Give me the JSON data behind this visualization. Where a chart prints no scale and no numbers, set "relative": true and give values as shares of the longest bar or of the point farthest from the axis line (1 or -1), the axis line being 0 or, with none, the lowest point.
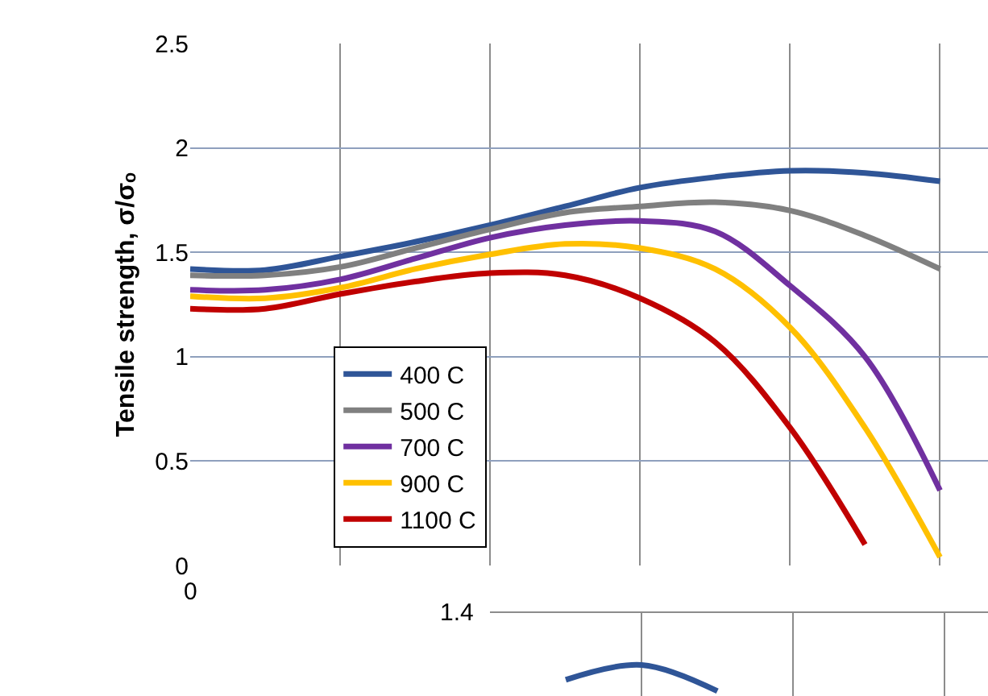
{
  "chart_data": [
    {
      "type": "line",
      "ylabel": "Tensile strength, σ/σₒ",
      "annotations": [
        "0"
      ],
      "categories": [
        null,
        null,
        null,
        null,
        null,
        null,
        null,
        null,
        null,
        null,
        null
      ],
      "ylim": [
        0,
        2.5
      ],
      "yticks": [
        0,
        0.5,
        1,
        1.5,
        2,
        2.5
      ],
      "grid": true,
      "legend": "bottom left",
      "marker": "none",
      "line_style": "solid",
      "series": [
        {
          "name": "400 C",
          "color": "#2f5597",
          "values": [
            1.42,
            1.415,
            1.48,
            1.55,
            1.63,
            1.72,
            1.81,
            1.86,
            1.89,
            1.88,
            1.84
          ]
        },
        {
          "name": "500 C",
          "color": "#808080",
          "values": [
            1.39,
            1.39,
            1.43,
            1.52,
            1.61,
            1.69,
            1.72,
            1.74,
            1.7,
            1.58,
            1.42
          ]
        },
        {
          "name": "700 C",
          "color": "#7030a0",
          "values": [
            1.32,
            1.32,
            1.37,
            1.47,
            1.57,
            1.63,
            1.65,
            1.6,
            1.34,
            1.0,
            0.36
          ]
        },
        {
          "name": "900 C",
          "color": "#ffc000",
          "values": [
            1.29,
            1.28,
            1.33,
            1.42,
            1.49,
            1.54,
            1.52,
            1.42,
            1.14,
            0.66,
            0.04
          ]
        },
        {
          "name": "1100 C",
          "color": "#c00000",
          "values": [
            1.23,
            1.23,
            1.3,
            1.36,
            1.4,
            1.39,
            1.28,
            1.07,
            0.66,
            0.1,
            null
          ]
        }
      ]
    },
    {
      "type": "line",
      "relative": true,
      "annotations": [
        "1.4"
      ],
      "categories": [
        null,
        null,
        null,
        null,
        null,
        null,
        null
      ],
      "grid": "x",
      "marker": "none",
      "line_style": "solid",
      "series": [
        {
          "color": "#2f5597",
          "values": [
            null,
            0.45,
            1,
            0.03,
            null,
            null,
            null
          ]
        }
      ]
    }
  ]
}
